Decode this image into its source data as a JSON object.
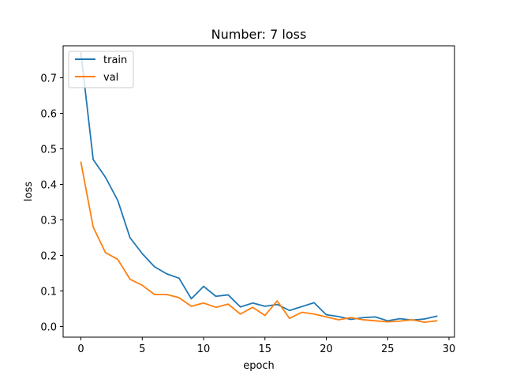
{
  "chart_data": {
    "type": "line",
    "title": "Number: 7 loss",
    "xlabel": "epoch",
    "ylabel": "loss",
    "xlim": [
      -1.45,
      30.45
    ],
    "ylim": [
      -0.03,
      0.79
    ],
    "x_ticks": [
      0,
      5,
      10,
      15,
      20,
      25,
      30
    ],
    "y_ticks": [
      0.0,
      0.1,
      0.2,
      0.3,
      0.4,
      0.5,
      0.6,
      0.7
    ],
    "y_tick_labels": [
      "0.0",
      "0.1",
      "0.2",
      "0.3",
      "0.4",
      "0.5",
      "0.6",
      "0.7"
    ],
    "grid": false,
    "legend": "top-left",
    "x": [
      0,
      1,
      2,
      3,
      4,
      5,
      6,
      7,
      8,
      9,
      10,
      11,
      12,
      13,
      14,
      15,
      16,
      17,
      18,
      19,
      20,
      21,
      22,
      23,
      24,
      25,
      26,
      27,
      28,
      29
    ],
    "series": [
      {
        "name": "train",
        "color": "#1f77b4",
        "values": [
          0.77,
          0.47,
          0.42,
          0.355,
          0.25,
          0.205,
          0.168,
          0.148,
          0.136,
          0.078,
          0.113,
          0.085,
          0.089,
          0.055,
          0.066,
          0.057,
          0.062,
          0.045,
          0.056,
          0.067,
          0.033,
          0.028,
          0.02,
          0.025,
          0.027,
          0.016,
          0.022,
          0.018,
          0.021,
          0.029
        ]
      },
      {
        "name": "val",
        "color": "#ff7f0e",
        "values": [
          0.462,
          0.28,
          0.208,
          0.189,
          0.133,
          0.116,
          0.09,
          0.09,
          0.081,
          0.057,
          0.066,
          0.054,
          0.063,
          0.035,
          0.054,
          0.031,
          0.072,
          0.023,
          0.04,
          0.035,
          0.027,
          0.019,
          0.025,
          0.019,
          0.016,
          0.013,
          0.015,
          0.019,
          0.012,
          0.016
        ]
      }
    ]
  }
}
